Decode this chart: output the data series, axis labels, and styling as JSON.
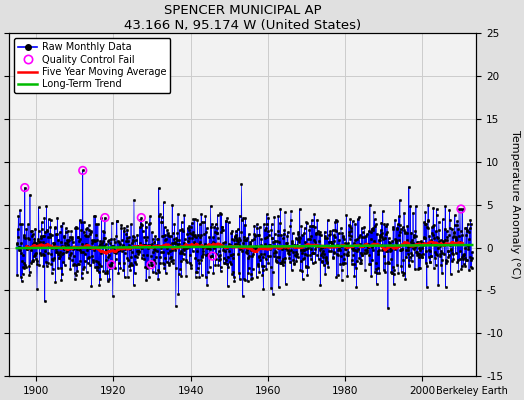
{
  "title": "SPENCER MUNICIPAL AP",
  "subtitle": "43.166 N, 95.174 W (United States)",
  "credit": "Berkeley Earth",
  "ylabel": "Temperature Anomaly (°C)",
  "xlim": [
    1893,
    2014
  ],
  "ylim": [
    -15,
    25
  ],
  "yticks": [
    -15,
    -10,
    -5,
    0,
    5,
    10,
    15,
    20,
    25
  ],
  "xticks": [
    1900,
    1920,
    1940,
    1960,
    1980,
    2000
  ],
  "start_year": 1895,
  "end_year": 2012,
  "seed": 17,
  "bg_color": "#e0e0e0",
  "plot_bg": "#f2f2f2",
  "line_color": "#0000ff",
  "dot_color": "#000000",
  "ma_color": "#ff0000",
  "trend_color": "#00bb00",
  "qc_color": "#ff00ff",
  "legend_entries": [
    "Raw Monthly Data",
    "Quality Control Fail",
    "Five Year Moving Average",
    "Long-Term Trend"
  ],
  "figsize": [
    5.24,
    4.0
  ],
  "dpi": 100
}
